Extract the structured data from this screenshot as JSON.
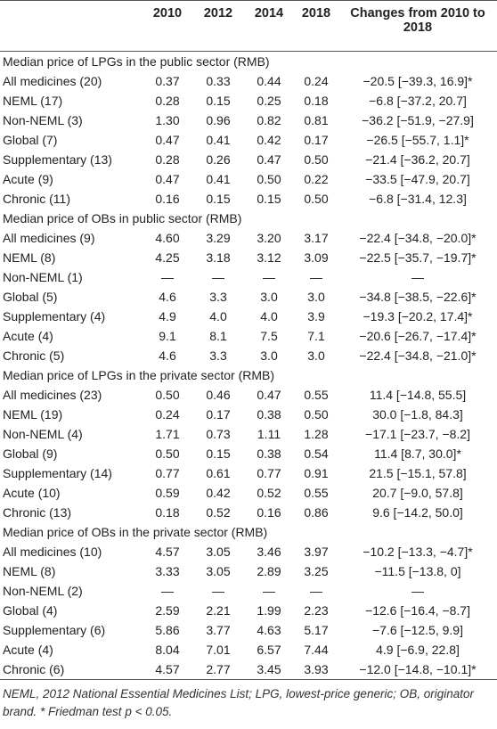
{
  "header": {
    "columns": [
      "2010",
      "2012",
      "2014",
      "2018",
      "Changes from 2010 to 2018"
    ]
  },
  "sections": [
    {
      "title": "Median price of LPGs in the public sector (RMB)",
      "rows": [
        [
          "All medicines (20)",
          "0.37",
          "0.33",
          "0.44",
          "0.24",
          "−20.5 [−39.3, 16.9]*"
        ],
        [
          "NEML (17)",
          "0.28",
          "0.15",
          "0.25",
          "0.18",
          "−6.8 [−37.2, 20.7]"
        ],
        [
          "Non-NEML (3)",
          "1.30",
          "0.96",
          "0.82",
          "0.81",
          "−36.2 [−51.9, −27.9]"
        ],
        [
          "Global (7)",
          "0.47",
          "0.41",
          "0.42",
          "0.17",
          "−26.5 [−55.7, 1.1]*"
        ],
        [
          "Supplementary (13)",
          "0.28",
          "0.26",
          "0.47",
          "0.50",
          "−21.4 [−36.2, 20.7]"
        ],
        [
          "Acute (9)",
          "0.47",
          "0.41",
          "0.50",
          "0.22",
          "−33.5 [−47.9, 20.7]"
        ],
        [
          "Chronic (11)",
          "0.16",
          "0.15",
          "0.15",
          "0.50",
          "−6.8 [−31.4, 12.3]"
        ]
      ]
    },
    {
      "title": "Median price of OBs in public sector (RMB)",
      "rows": [
        [
          "All medicines (9)",
          "4.60",
          "3.29",
          "3.20",
          "3.17",
          "−22.4 [−34.8, −20.0]*"
        ],
        [
          "NEML (8)",
          "4.25",
          "3.18",
          "3.12",
          "3.09",
          "−22.5 [−35.7, −19.7]*"
        ],
        [
          "Non-NEML (1)",
          "—",
          "—",
          "—",
          "—",
          "—"
        ],
        [
          "Global (5)",
          "4.6",
          "3.3",
          "3.0",
          "3.0",
          "−34.8 [−38.5, −22.6]*"
        ],
        [
          "Supplementary (4)",
          "4.9",
          "4.0",
          "4.0",
          "3.9",
          "−19.3 [−20.2, 17.4]*"
        ],
        [
          "Acute (4)",
          "9.1",
          "8.1",
          "7.5",
          "7.1",
          "−20.6 [−26.7, −17.4]*"
        ],
        [
          "Chronic (5)",
          "4.6",
          "3.3",
          "3.0",
          "3.0",
          "−22.4 [−34.8, −21.0]*"
        ]
      ]
    },
    {
      "title": "Median price of LPGs in the private sector (RMB)",
      "rows": [
        [
          "All medicines (23)",
          "0.50",
          "0.46",
          "0.47",
          "0.55",
          "11.4 [−14.8, 55.5]"
        ],
        [
          "NEML (19)",
          "0.24",
          "0.17",
          "0.38",
          "0.50",
          "30.0 [−1.8, 84.3]"
        ],
        [
          "Non-NEML (4)",
          "1.71",
          "0.73",
          "1.11",
          "1.28",
          "−17.1 [−23.7, −8.2]"
        ],
        [
          "Global (9)",
          "0.50",
          "0.15",
          "0.38",
          "0.54",
          "11.4 [8.7, 30.0]*"
        ],
        [
          "Supplementary (14)",
          "0.77",
          "0.61",
          "0.77",
          "0.91",
          "21.5 [−15.1, 57.8]"
        ],
        [
          "Acute (10)",
          "0.59",
          "0.42",
          "0.52",
          "0.55",
          "20.7 [−9.0, 57.8]"
        ],
        [
          "Chronic (13)",
          "0.18",
          "0.52",
          "0.16",
          "0.86",
          "9.6 [−14.2, 50.0]"
        ]
      ]
    },
    {
      "title": "Median price of OBs in the private sector (RMB)",
      "rows": [
        [
          "All medicines (10)",
          "4.57",
          "3.05",
          "3.46",
          "3.97",
          "−10.2 [−13.3, −4.7]*"
        ],
        [
          "NEML (8)",
          "3.33",
          "3.05",
          "2.89",
          "3.25",
          "−11.5 [−13.8, 0]"
        ],
        [
          "Non-NEML (2)",
          "—",
          "—",
          "—",
          "—",
          "—"
        ],
        [
          "Global (4)",
          "2.59",
          "2.21",
          "1.99",
          "2.23",
          "−12.6 [−16.4, −8.7]"
        ],
        [
          "Supplementary (6)",
          "5.86",
          "3.77",
          "4.63",
          "5.17",
          "−7.6 [−12.5, 9.9]"
        ],
        [
          "Acute (4)",
          "8.04",
          "7.01",
          "6.57",
          "7.44",
          "4.9 [−6.9, 22.8]"
        ],
        [
          "Chronic (6)",
          "4.57",
          "2.77",
          "3.45",
          "3.93",
          "−12.0 [−14.8, −10.1]*"
        ]
      ]
    }
  ],
  "footnote": "NEML, 2012 National Essential Medicines List; LPG, lowest-price generic; OB, originator brand. * Friedman test p < 0.05."
}
